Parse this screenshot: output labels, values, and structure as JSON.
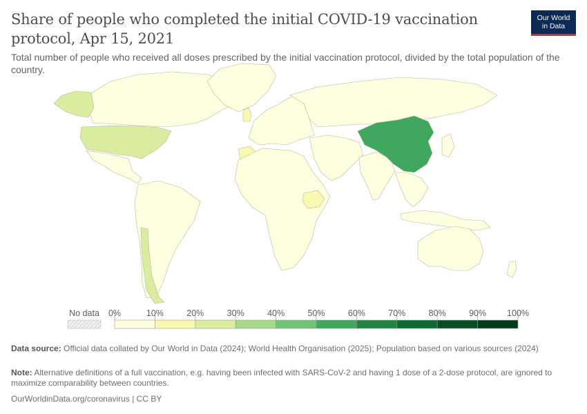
{
  "header": {
    "title": "Share of people who completed the initial COVID-19 vaccination protocol, Apr 15, 2021",
    "subtitle": "Total number of people who received all doses prescribed by the initial vaccination protocol, divided by the total population of the country.",
    "logo_line1": "Our World",
    "logo_line2": "in Data"
  },
  "legend": {
    "no_data_label": "No data",
    "ticks": [
      "0%",
      "10%",
      "20%",
      "30%",
      "40%",
      "50%",
      "60%",
      "70%",
      "80%",
      "90%",
      "100%"
    ],
    "bins": [
      "#ffffe0",
      "#f8f8b0",
      "#d9ec9f",
      "#a6d98a",
      "#73c27a",
      "#40a75e",
      "#1f8343",
      "#0c6a34",
      "#064d24",
      "#033a1a"
    ]
  },
  "regions": [
    {
      "name": "north-america",
      "color": "#fefee0"
    },
    {
      "name": "alaska",
      "color": "#d9ec9f"
    },
    {
      "name": "united-states",
      "color": "#d9ec9f"
    },
    {
      "name": "mexico",
      "color": "#fefee0"
    },
    {
      "name": "south-america",
      "color": "#fefee0"
    },
    {
      "name": "chile",
      "color": "#d9ec9f"
    },
    {
      "name": "greenland",
      "color": "#fefee0"
    },
    {
      "name": "europe",
      "color": "#fefee0"
    },
    {
      "name": "united-kingdom",
      "color": "#f8f8b0"
    },
    {
      "name": "morocco",
      "color": "#f8f8b0"
    },
    {
      "name": "africa",
      "color": "#fefee0"
    },
    {
      "name": "ethiopia",
      "color": "#f8f8b0"
    },
    {
      "name": "russia",
      "color": "#fefee0"
    },
    {
      "name": "middle-east",
      "color": "#fefee0"
    },
    {
      "name": "india",
      "color": "#fefee0"
    },
    {
      "name": "china",
      "color": "#40a75e"
    },
    {
      "name": "southeast-asia",
      "color": "#fefee0"
    },
    {
      "name": "japan",
      "color": "#fefee0"
    },
    {
      "name": "indonesia",
      "color": "#fefee0"
    },
    {
      "name": "australia",
      "color": "#fefee0"
    },
    {
      "name": "new-zealand",
      "color": "#fefee0"
    }
  ],
  "footer": {
    "source_label": "Data source:",
    "source_text": "Official data collated by Our World in Data (2024); World Health Organisation (2025); Population based on various sources (2024)",
    "note_label": "Note:",
    "note_text": "Alternative definitions of a full vaccination, e.g. having been infected with SARS-CoV-2 and having 1 dose of a 2-dose protocol, are ignored to maximize comparability between countries.",
    "link_text": "OurWorldinData.org/coronavirus",
    "license_text": " | CC BY"
  }
}
